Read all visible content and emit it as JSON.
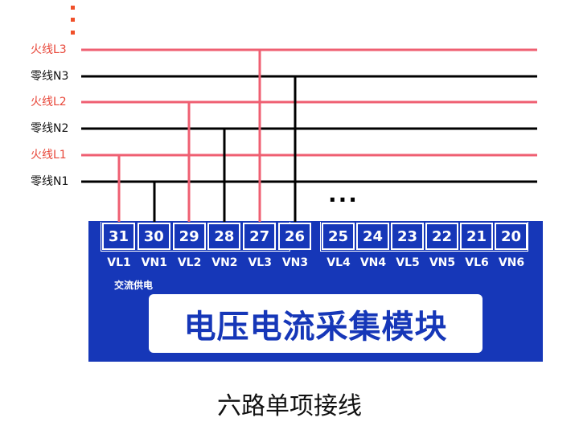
{
  "colors": {
    "live": "#ef5f72",
    "neutral": "#000000",
    "module": "#1637b8",
    "dots": "#f0502a"
  },
  "wires": [
    {
      "label": "火线L3",
      "type": "live"
    },
    {
      "label": "零线N3",
      "type": "neutral"
    },
    {
      "label": "火线L2",
      "type": "live"
    },
    {
      "label": "零线N2",
      "type": "neutral"
    },
    {
      "label": "火线L1",
      "type": "live"
    },
    {
      "label": "零线N1",
      "type": "neutral"
    }
  ],
  "terminals_group1": [
    {
      "num": "31",
      "name": "VL1"
    },
    {
      "num": "30",
      "name": "VN1"
    },
    {
      "num": "29",
      "name": "VL2"
    },
    {
      "num": "28",
      "name": "VN2"
    },
    {
      "num": "27",
      "name": "VL3"
    },
    {
      "num": "26",
      "name": "VN3"
    }
  ],
  "terminals_group2": [
    {
      "num": "25",
      "name": "VL4"
    },
    {
      "num": "24",
      "name": "VN4"
    },
    {
      "num": "23",
      "name": "VL5"
    },
    {
      "num": "22",
      "name": "VN5"
    },
    {
      "num": "21",
      "name": "VL6"
    },
    {
      "num": "20",
      "name": "VN6"
    }
  ],
  "module": {
    "supply_label": "交流供电",
    "title": "电压电流采集模块"
  },
  "ellipsis": "···",
  "caption": "六路单项接线"
}
